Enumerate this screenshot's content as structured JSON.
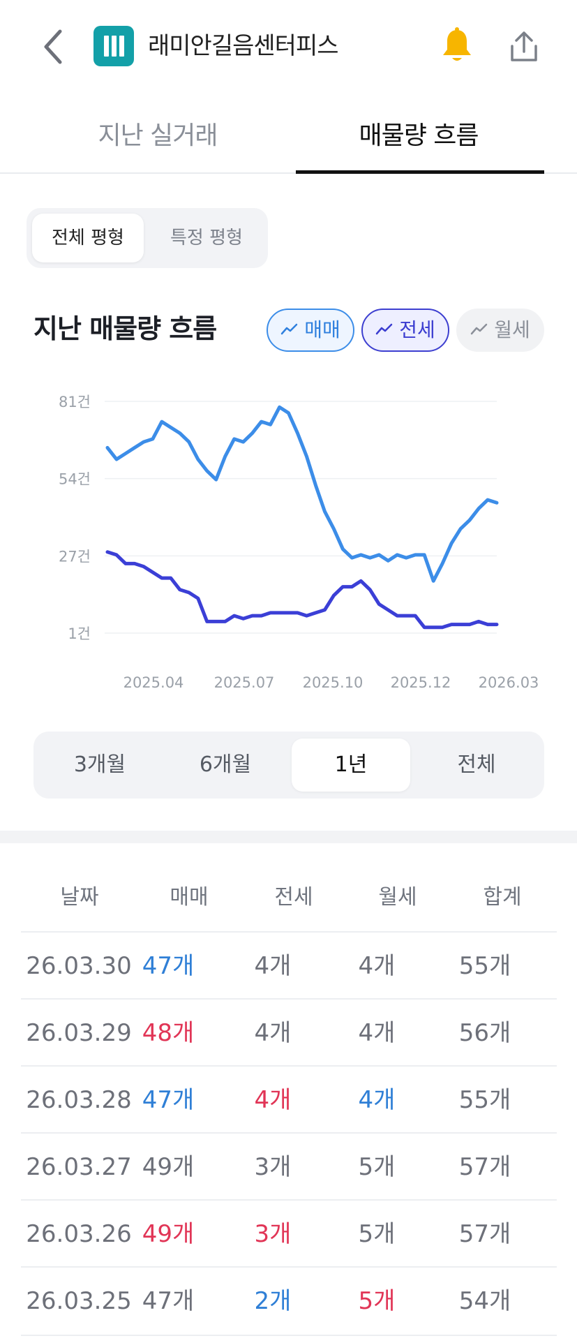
{
  "header": {
    "title": "래미안길음센터피스"
  },
  "tabs": [
    "지난 실거래",
    "매물량 흐름"
  ],
  "pyeong_filter": [
    "전체 평형",
    "특정 평형"
  ],
  "section_title": "지난 매물량 흐름",
  "series_chips": [
    "매매",
    "전세",
    "월세"
  ],
  "colors": {
    "sale": "#3c8de8",
    "jeonse": "#3b3fd6",
    "up": "#e13556",
    "down": "#2f7fd6"
  },
  "periods": [
    "3개월",
    "6개월",
    "1년",
    "전체"
  ],
  "active_period": "1년",
  "chart_data": {
    "type": "line",
    "y_ticks": [
      "81건",
      "54건",
      "27건",
      "1건"
    ],
    "x_ticks": [
      "2025.04",
      "2025.07",
      "2025.10",
      "2025.12",
      "2026.03"
    ],
    "ylim": [
      1,
      81
    ],
    "series": [
      {
        "name": "매매",
        "values": [
          65,
          61,
          63,
          65,
          67,
          68,
          74,
          72,
          70,
          67,
          61,
          57,
          54,
          62,
          68,
          67,
          70,
          74,
          73,
          79,
          77,
          70,
          62,
          52,
          43,
          37,
          30,
          27,
          28,
          27,
          28,
          26,
          28,
          27,
          28,
          28,
          19,
          25,
          32,
          37,
          40,
          44,
          47,
          46
        ]
      },
      {
        "name": "전세",
        "values": [
          29,
          28,
          25,
          25,
          24,
          22,
          20,
          20,
          16,
          15,
          13,
          5,
          5,
          5,
          7,
          6,
          7,
          7,
          8,
          8,
          8,
          8,
          7,
          8,
          9,
          14,
          17,
          17,
          19,
          16,
          11,
          9,
          7,
          7,
          7,
          3,
          3,
          3,
          4,
          4,
          4,
          5,
          4,
          4
        ]
      }
    ]
  },
  "table": {
    "headers": [
      "날짜",
      "매매",
      "전세",
      "월세",
      "합계"
    ],
    "rows": [
      {
        "date": "26.03.30",
        "sale": "47개",
        "jeonse": "4개",
        "monthly": "4개",
        "total": "55개"
      },
      {
        "date": "26.03.29",
        "sale": "48개",
        "jeonse": "4개",
        "monthly": "4개",
        "total": "56개"
      },
      {
        "date": "26.03.28",
        "sale": "47개",
        "jeonse": "4개",
        "monthly": "4개",
        "total": "55개"
      },
      {
        "date": "26.03.27",
        "sale": "49개",
        "jeonse": "3개",
        "monthly": "5개",
        "total": "57개"
      },
      {
        "date": "26.03.26",
        "sale": "49개",
        "jeonse": "3개",
        "monthly": "5개",
        "total": "57개"
      },
      {
        "date": "26.03.25",
        "sale": "47개",
        "jeonse": "2개",
        "monthly": "5개",
        "total": "54개"
      }
    ]
  }
}
